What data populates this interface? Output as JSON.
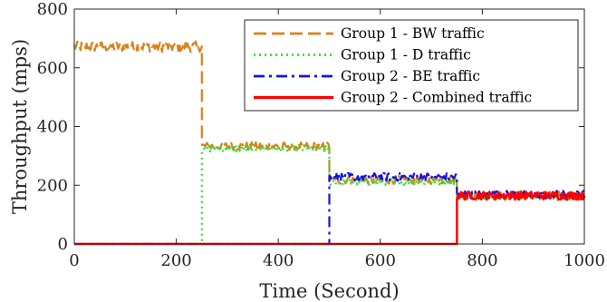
{
  "chart_data": {
    "type": "line",
    "xlabel": "Time (Second)",
    "ylabel": "Throughput (mps)",
    "xlim": [
      0,
      1000
    ],
    "ylim": [
      0,
      800
    ],
    "xticks": [
      0,
      200,
      400,
      600,
      800,
      1000
    ],
    "yticks": [
      0,
      200,
      400,
      600,
      800
    ],
    "grid": false,
    "legend_position": "top-right",
    "series": [
      {
        "name": "Group 1 - BW traffic",
        "color": "#d9821b",
        "style": "dashed",
        "segments": [
          {
            "x": [
              0,
              250
            ],
            "level": 672,
            "noise": 18
          },
          {
            "x": [
              250,
              500
            ],
            "level": 333,
            "noise": 14
          },
          {
            "x": [
              500,
              750
            ],
            "level": 218,
            "noise": 14
          },
          {
            "x": [
              750,
              1000
            ],
            "level": 165,
            "noise": 14
          }
        ]
      },
      {
        "name": "Group 1 - D traffic",
        "color": "#33dd33",
        "style": "dotted",
        "segments": [
          {
            "x": [
              0,
              250
            ],
            "level": 0,
            "noise": 0
          },
          {
            "x": [
              250,
              500
            ],
            "level": 325,
            "noise": 12
          },
          {
            "x": [
              500,
              750
            ],
            "level": 212,
            "noise": 12
          },
          {
            "x": [
              750,
              1000
            ],
            "level": 160,
            "noise": 12
          }
        ]
      },
      {
        "name": "Group 2 - BE traffic",
        "color": "#1414e0",
        "style": "dash-dot",
        "segments": [
          {
            "x": [
              0,
              500
            ],
            "level": 0,
            "noise": 0
          },
          {
            "x": [
              500,
              750
            ],
            "level": 228,
            "noise": 14
          },
          {
            "x": [
              750,
              1000
            ],
            "level": 168,
            "noise": 14
          }
        ]
      },
      {
        "name": "Group 2 - Combined traffic",
        "color": "#ff0000",
        "style": "solid",
        "segments": [
          {
            "x": [
              0,
              750
            ],
            "level": 0,
            "noise": 0
          },
          {
            "x": [
              750,
              1000
            ],
            "level": 165,
            "noise": 14
          }
        ]
      }
    ]
  }
}
